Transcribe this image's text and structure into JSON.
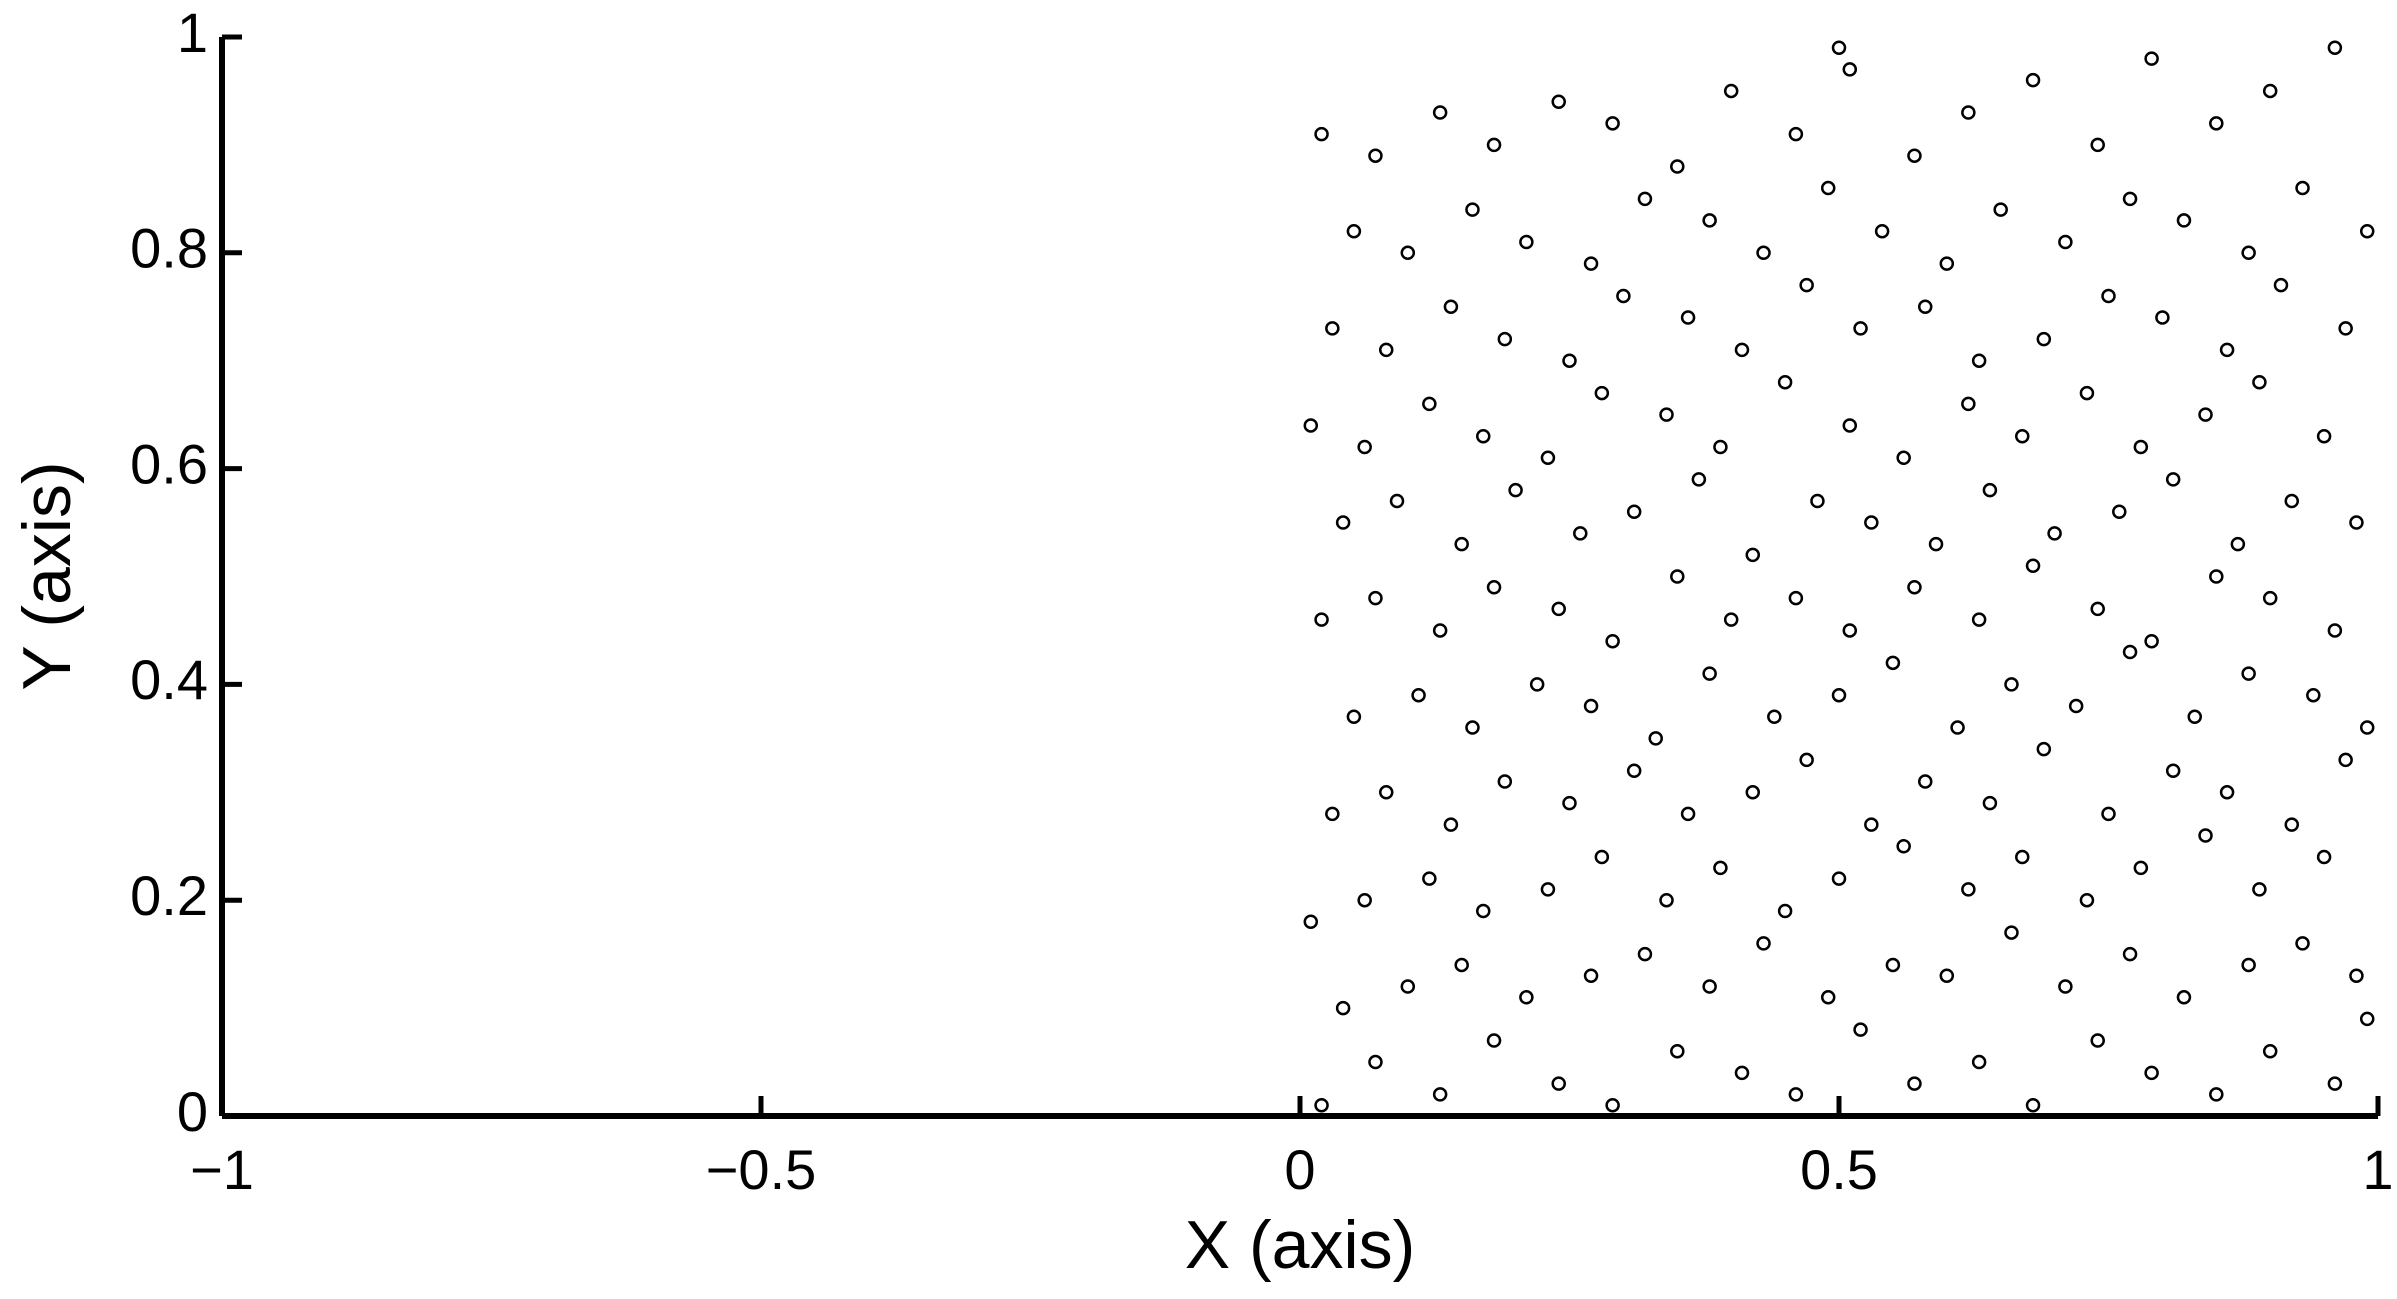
{
  "chart_data": {
    "type": "scatter",
    "xlabel": "X (axis)",
    "ylabel": "Y (axis)",
    "xlim": [
      -1,
      1
    ],
    "ylim": [
      0,
      1
    ],
    "xticks": [
      {
        "value": -1,
        "label": "−1"
      },
      {
        "value": -0.5,
        "label": "−0.5"
      },
      0,
      0.5,
      1
    ],
    "yticks": [
      0,
      0.2,
      0.4,
      0.6,
      0.8,
      1
    ],
    "color": "#000000",
    "x": [
      0.02,
      0.07,
      0.13,
      0.18,
      0.24,
      0.29,
      0.35,
      0.41,
      0.46,
      0.52,
      0.57,
      0.63,
      0.68,
      0.74,
      0.79,
      0.85,
      0.9,
      0.96,
      0.99,
      0.04,
      0.1,
      0.15,
      0.21,
      0.27,
      0.32,
      0.38,
      0.43,
      0.49,
      0.55,
      0.6,
      0.66,
      0.71,
      0.77,
      0.82,
      0.88,
      0.93,
      0.98,
      0.01,
      0.06,
      0.12,
      0.17,
      0.23,
      0.28,
      0.34,
      0.39,
      0.45,
      0.5,
      0.56,
      0.62,
      0.67,
      0.73,
      0.78,
      0.84,
      0.89,
      0.95,
      0.03,
      0.08,
      0.14,
      0.19,
      0.25,
      0.31,
      0.36,
      0.42,
      0.47,
      0.53,
      0.58,
      0.64,
      0.69,
      0.75,
      0.81,
      0.86,
      0.92,
      0.97,
      0.05,
      0.11,
      0.16,
      0.22,
      0.27,
      0.33,
      0.38,
      0.44,
      0.5,
      0.55,
      0.61,
      0.66,
      0.72,
      0.77,
      0.83,
      0.88,
      0.94,
      0.99,
      0.02,
      0.07,
      0.13,
      0.18,
      0.24,
      0.29,
      0.35,
      0.4,
      0.46,
      0.51,
      0.57,
      0.63,
      0.68,
      0.74,
      0.79,
      0.85,
      0.9,
      0.96,
      0.04,
      0.09,
      0.15,
      0.2,
      0.26,
      0.31,
      0.37,
      0.42,
      0.48,
      0.53,
      0.59,
      0.64,
      0.7,
      0.76,
      0.81,
      0.87,
      0.92,
      0.98,
      0.01,
      0.06,
      0.12,
      0.17,
      0.23,
      0.28,
      0.34,
      0.39,
      0.45,
      0.51,
      0.56,
      0.62,
      0.67,
      0.73,
      0.78,
      0.84,
      0.89,
      0.95,
      0.03,
      0.08,
      0.14,
      0.19,
      0.25,
      0.3,
      0.36,
      0.41,
      0.47,
      0.52,
      0.58,
      0.63,
      0.69,
      0.75,
      0.8,
      0.86,
      0.91,
      0.97,
      0.05,
      0.1,
      0.16,
      0.21,
      0.27,
      0.32,
      0.38,
      0.43,
      0.49,
      0.54,
      0.6,
      0.65,
      0.71,
      0.77,
      0.82,
      0.88,
      0.93,
      0.99,
      0.02,
      0.07,
      0.13,
      0.18,
      0.24,
      0.29,
      0.35,
      0.4,
      0.46,
      0.51,
      0.57,
      0.62,
      0.68,
      0.74,
      0.79,
      0.85,
      0.9,
      0.96,
      0.5
    ],
    "values": [
      0.01,
      0.05,
      0.02,
      0.07,
      0.03,
      0.01,
      0.06,
      0.04,
      0.02,
      0.08,
      0.03,
      0.05,
      0.01,
      0.07,
      0.04,
      0.02,
      0.06,
      0.03,
      0.09,
      0.1,
      0.12,
      0.14,
      0.11,
      0.13,
      0.15,
      0.12,
      0.16,
      0.11,
      0.14,
      0.13,
      0.17,
      0.12,
      0.15,
      0.11,
      0.14,
      0.16,
      0.13,
      0.18,
      0.2,
      0.22,
      0.19,
      0.21,
      0.24,
      0.2,
      0.23,
      0.19,
      0.22,
      0.25,
      0.21,
      0.24,
      0.2,
      0.23,
      0.26,
      0.21,
      0.24,
      0.28,
      0.3,
      0.27,
      0.31,
      0.29,
      0.32,
      0.28,
      0.3,
      0.33,
      0.27,
      0.31,
      0.29,
      0.34,
      0.28,
      0.32,
      0.3,
      0.27,
      0.33,
      0.37,
      0.39,
      0.36,
      0.4,
      0.38,
      0.35,
      0.41,
      0.37,
      0.39,
      0.42,
      0.36,
      0.4,
      0.38,
      0.43,
      0.37,
      0.41,
      0.39,
      0.36,
      0.46,
      0.48,
      0.45,
      0.49,
      0.47,
      0.44,
      0.5,
      0.46,
      0.48,
      0.45,
      0.49,
      0.46,
      0.51,
      0.47,
      0.44,
      0.5,
      0.48,
      0.45,
      0.55,
      0.57,
      0.53,
      0.58,
      0.54,
      0.56,
      0.59,
      0.52,
      0.57,
      0.55,
      0.53,
      0.58,
      0.54,
      0.56,
      0.59,
      0.53,
      0.57,
      0.55,
      0.64,
      0.62,
      0.66,
      0.63,
      0.61,
      0.67,
      0.65,
      0.62,
      0.68,
      0.64,
      0.61,
      0.66,
      0.63,
      0.67,
      0.62,
      0.65,
      0.68,
      0.63,
      0.73,
      0.71,
      0.75,
      0.72,
      0.7,
      0.76,
      0.74,
      0.71,
      0.77,
      0.73,
      0.75,
      0.7,
      0.72,
      0.76,
      0.74,
      0.71,
      0.77,
      0.73,
      0.82,
      0.8,
      0.84,
      0.81,
      0.79,
      0.85,
      0.83,
      0.8,
      0.86,
      0.82,
      0.79,
      0.84,
      0.81,
      0.85,
      0.83,
      0.8,
      0.86,
      0.82,
      0.91,
      0.89,
      0.93,
      0.9,
      0.94,
      0.92,
      0.88,
      0.95,
      0.91,
      0.97,
      0.89,
      0.93,
      0.96,
      0.9,
      0.98,
      0.92,
      0.95,
      0.99,
      0.99
    ]
  }
}
